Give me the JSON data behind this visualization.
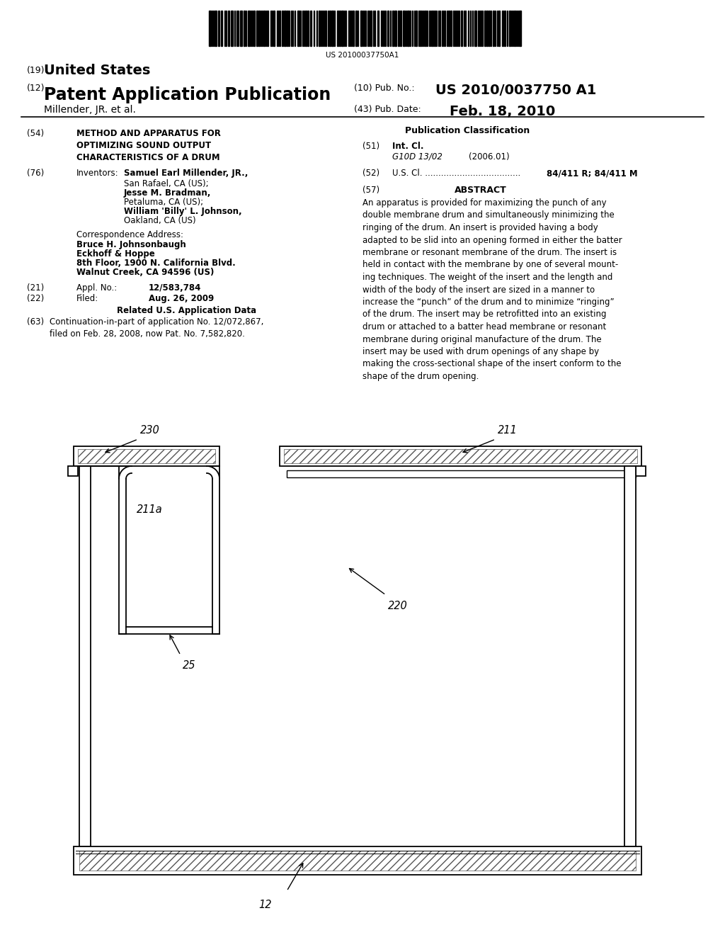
{
  "bg_color": "#ffffff",
  "barcode_text": "US 20100037750A1",
  "label_230": "230",
  "label_211": "211",
  "label_211a": "211a",
  "label_220": "220",
  "label_25": "25",
  "label_12": "12"
}
